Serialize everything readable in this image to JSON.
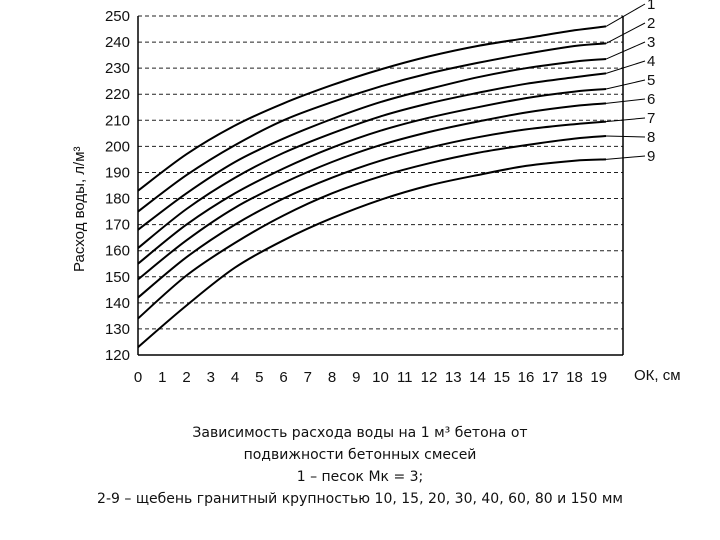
{
  "chart_data": {
    "type": "line",
    "title": "",
    "ylabel": "Расход воды, л/м³",
    "xlabel": "ОК, см",
    "ylim": [
      120,
      250
    ],
    "xlim": [
      0,
      20
    ],
    "x_ticks": [
      "0",
      "1",
      "2",
      "3",
      "4",
      "5",
      "6",
      "7",
      "8",
      "9",
      "10",
      "11",
      "12",
      "13",
      "14",
      "15",
      "16",
      "17",
      "18",
      "19"
    ],
    "y_ticks": [
      "120",
      "130",
      "140",
      "150",
      "160",
      "170",
      "180",
      "190",
      "200",
      "210",
      "220",
      "230",
      "240",
      "250"
    ],
    "grid": "dashed horizontal",
    "x": [
      0,
      2,
      4,
      6,
      8,
      10,
      12,
      14,
      16,
      18,
      19.3
    ],
    "series": [
      {
        "name": "1",
        "values": [
          183,
          197,
          208,
          216.5,
          223.5,
          229.5,
          234.5,
          238.5,
          241.5,
          244.5,
          246
        ]
      },
      {
        "name": "2",
        "values": [
          175,
          189,
          200.5,
          210,
          217,
          223,
          228,
          232,
          235.5,
          238.5,
          239.5
        ]
      },
      {
        "name": "3",
        "values": [
          168,
          182,
          194,
          203,
          210.5,
          217,
          222,
          226.5,
          230,
          232.5,
          233.5
        ]
      },
      {
        "name": "4",
        "values": [
          161,
          176,
          188,
          197.5,
          205,
          211.5,
          216.5,
          220.5,
          224,
          226.5,
          228
        ]
      },
      {
        "name": "5",
        "values": [
          155,
          170,
          182,
          191.5,
          199.5,
          206,
          211,
          215,
          218.5,
          221,
          222
        ]
      },
      {
        "name": "6",
        "values": [
          149,
          164,
          176.5,
          186,
          194,
          200.5,
          205.5,
          209.5,
          213,
          215.5,
          216.5
        ]
      },
      {
        "name": "7",
        "values": [
          142,
          157.5,
          170,
          180,
          188,
          194.5,
          199.5,
          203.5,
          206.5,
          208.5,
          209.5
        ]
      },
      {
        "name": "8",
        "values": [
          134,
          150.5,
          163,
          173.5,
          182,
          188.5,
          193.5,
          197.5,
          200.5,
          203,
          204
        ]
      },
      {
        "name": "9",
        "values": [
          123,
          139,
          153.5,
          164,
          172.5,
          179.5,
          185,
          189,
          192.5,
          194.5,
          195
        ]
      }
    ]
  },
  "caption": {
    "line1": "Зависимость расхода воды на 1 м³ бетона от",
    "line2": "подвижности бетонных смесей",
    "line3": "1 – песок Мк = 3;",
    "line4": "2-9 – щебень гранитный крупностью 10, 15, 20, 30, 40, 60, 80 и 150 мм"
  }
}
